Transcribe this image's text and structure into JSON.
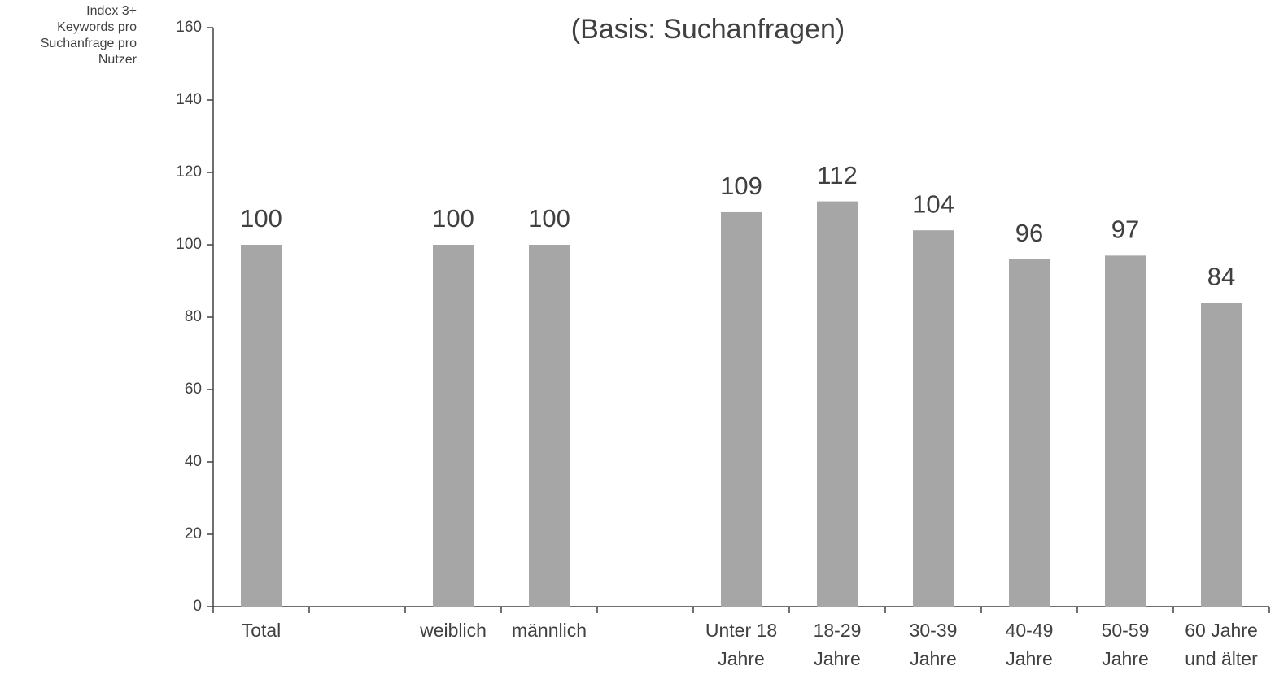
{
  "chart_data": {
    "type": "bar",
    "title": "(Basis: Suchanfragen)",
    "y_label": "Index 3+\nKeywords pro\nSuchanfrage pro\nNutzer",
    "categories": [
      "Total",
      null,
      "weiblich",
      "männlich",
      null,
      "Unter 18\nJahre",
      "18-29\nJahre",
      "30-39\nJahre",
      "40-49\nJahre",
      "50-59\nJahre",
      "60 Jahre\nund älter"
    ],
    "values": [
      100,
      null,
      100,
      100,
      null,
      109,
      112,
      104,
      96,
      97,
      84
    ],
    "color": "#a6a6a6",
    "ylim": [
      0,
      160
    ],
    "yticks": [
      0,
      20,
      40,
      60,
      80,
      100,
      120,
      140,
      160
    ],
    "grid": false
  }
}
